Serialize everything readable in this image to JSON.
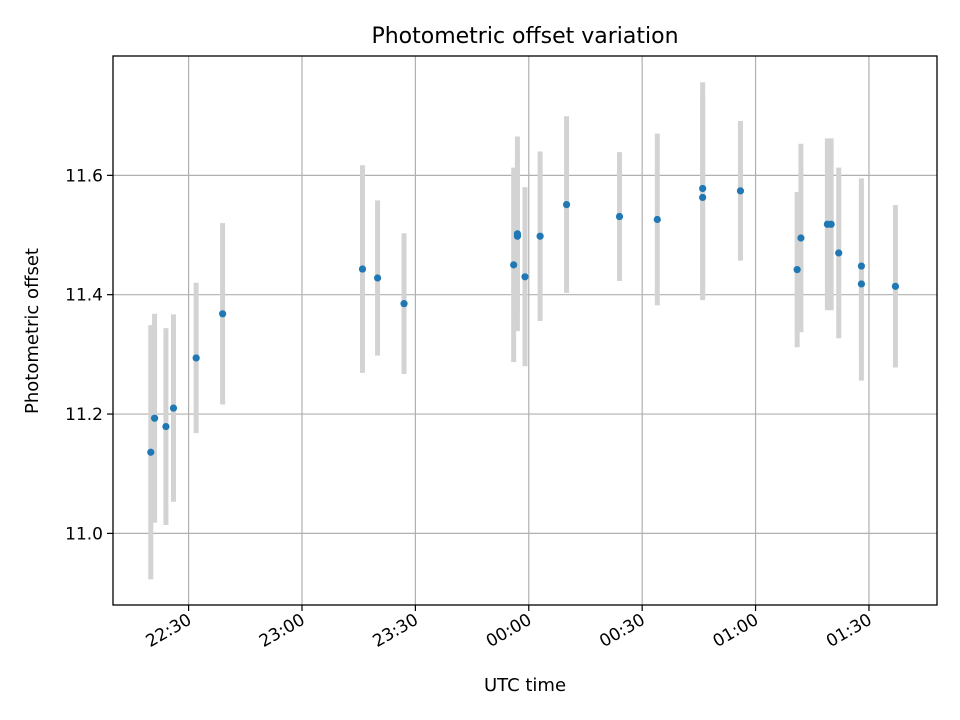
{
  "chart_data": {
    "type": "scatter",
    "title": "Photometric offset variation",
    "xlabel": "UTC time",
    "ylabel": "Photometric offset",
    "x_tick_labels": [
      "22:30",
      "23:00",
      "23:30",
      "00:00",
      "00:30",
      "01:00",
      "01:30"
    ],
    "x_tick_times": [
      "22:30",
      "23:00",
      "23:30",
      "00:00",
      "00:30",
      "01:00",
      "01:30"
    ],
    "y_ticks": [
      11.0,
      11.2,
      11.4,
      11.6
    ],
    "xlim": [
      "22:10",
      "01:48"
    ],
    "ylim": [
      10.88,
      11.8
    ],
    "grid": true,
    "colors": {
      "point": "#1f77b4",
      "errorbar": "#d3d3d3",
      "grid": "#b0b0b0"
    },
    "points": [
      {
        "x": "22:20",
        "y": 11.136,
        "yerr": 0.213
      },
      {
        "x": "22:21",
        "y": 11.193,
        "yerr": 0.175
      },
      {
        "x": "22:24",
        "y": 11.179,
        "yerr": 0.165
      },
      {
        "x": "22:26",
        "y": 11.21,
        "yerr": 0.157
      },
      {
        "x": "22:32",
        "y": 11.294,
        "yerr": 0.126
      },
      {
        "x": "22:39",
        "y": 11.368,
        "yerr": 0.152
      },
      {
        "x": "23:16",
        "y": 11.443,
        "yerr": 0.174
      },
      {
        "x": "23:20",
        "y": 11.428,
        "yerr": 0.13
      },
      {
        "x": "23:27",
        "y": 11.385,
        "yerr": 0.118
      },
      {
        "x": "23:56",
        "y": 11.45,
        "yerr": 0.163
      },
      {
        "x": "23:57",
        "y": 11.498,
        "yerr": 0.133
      },
      {
        "x": "23:57",
        "y": 11.502,
        "yerr": 0.163
      },
      {
        "x": "23:59",
        "y": 11.43,
        "yerr": 0.15
      },
      {
        "x": "00:03",
        "y": 11.498,
        "yerr": 0.142
      },
      {
        "x": "00:10",
        "y": 11.551,
        "yerr": 0.148
      },
      {
        "x": "00:24",
        "y": 11.531,
        "yerr": 0.108
      },
      {
        "x": "00:34",
        "y": 11.526,
        "yerr": 0.144
      },
      {
        "x": "00:46",
        "y": 11.578,
        "yerr": 0.178
      },
      {
        "x": "00:46",
        "y": 11.563,
        "yerr": 0.172
      },
      {
        "x": "00:56",
        "y": 11.574,
        "yerr": 0.117
      },
      {
        "x": "01:11",
        "y": 11.442,
        "yerr": 0.13
      },
      {
        "x": "01:12",
        "y": 11.495,
        "yerr": 0.158
      },
      {
        "x": "01:19",
        "y": 11.518,
        "yerr": 0.144
      },
      {
        "x": "01:20",
        "y": 11.518,
        "yerr": 0.144
      },
      {
        "x": "01:22",
        "y": 11.47,
        "yerr": 0.143
      },
      {
        "x": "01:28",
        "y": 11.448,
        "yerr": 0.147
      },
      {
        "x": "01:28",
        "y": 11.418,
        "yerr": 0.162
      },
      {
        "x": "01:37",
        "y": 11.414,
        "yerr": 0.136
      }
    ]
  }
}
